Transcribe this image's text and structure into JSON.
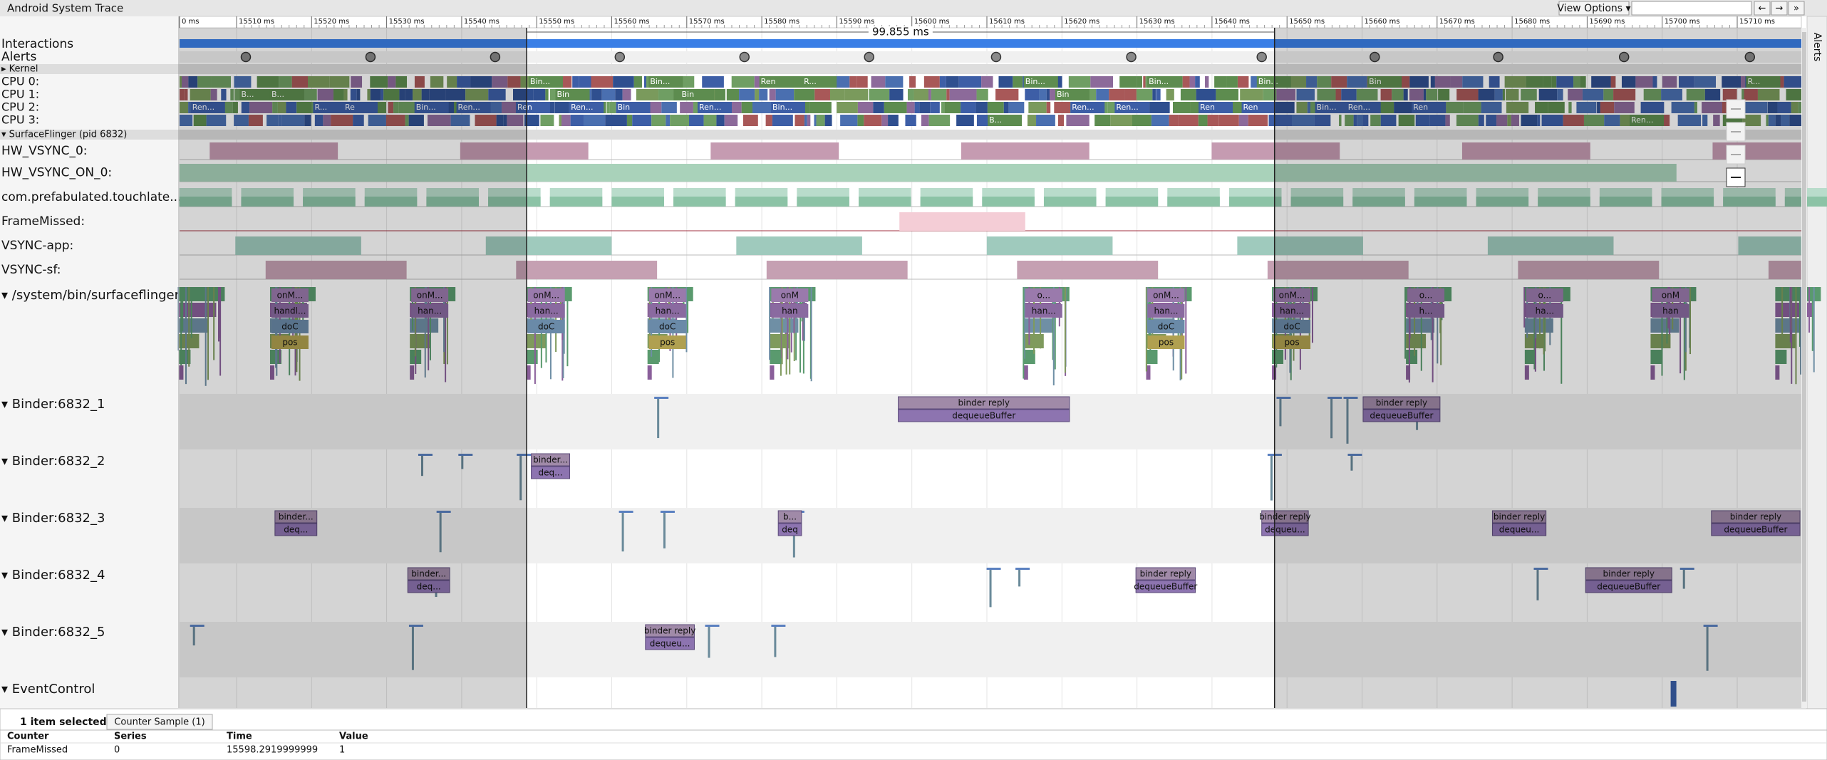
{
  "header": {
    "title": "Android System Trace",
    "view_options": "View Options ▾",
    "nav": [
      "←",
      "→",
      "»"
    ]
  },
  "ruler": {
    "ticks": [
      "0 ms",
      "15510 ms",
      "15520 ms",
      "15530 ms",
      "15540 ms",
      "15550 ms",
      "15560 ms",
      "15570 ms",
      "15580 ms",
      "15590 ms",
      "15600 ms",
      "15610 ms",
      "15620 ms",
      "15630 ms",
      "15640 ms",
      "15650 ms",
      "15660 ms",
      "15670 ms",
      "15680 ms",
      "15690 ms",
      "15700 ms",
      "15710 ms"
    ],
    "selection": "99.855 ms"
  },
  "tracks": {
    "interactions": "Interactions",
    "alerts": "Alerts",
    "kernel": "▸ Kernel",
    "cpus": [
      "CPU 0:",
      "CPU 1:",
      "CPU 2:",
      "CPU 3:"
    ],
    "process": "▾ SurfaceFlinger (pid 6832)",
    "counters": [
      "HW_VSYNC_0:",
      "HW_VSYNC_ON_0:",
      "com.prefabulated.touchlate...",
      "FrameMissed:",
      "VSYNC-app:",
      "VSYNC-sf:"
    ],
    "threads": [
      "▾  /system/bin/surfaceflinger",
      "▾  Binder:6832_1",
      "▾  Binder:6832_2",
      "▾  Binder:6832_3",
      "▾  Binder:6832_4",
      "▾  Binder:6832_5",
      "▾  EventControl"
    ]
  },
  "cpu_slices": [
    [
      "Bin...",
      "Bin...",
      "Ren",
      "R...",
      "Bin...",
      "Bin...",
      "Bin...",
      "Bin",
      "R..."
    ],
    [
      "B...",
      "B...",
      "Bin",
      "Bin",
      "Bin"
    ],
    [
      "Ren...",
      "R...",
      "Re",
      "Bin...",
      "Ren...",
      "Ren",
      "Ren...",
      "Bin",
      "Ren...",
      "Bin...",
      "Ren...",
      "Ren...",
      "Ren",
      "Ren",
      "Bin...",
      "Ren...",
      "Ren"
    ],
    [
      "B...",
      "Ren..."
    ]
  ],
  "sf_slices": [
    [
      "onM...",
      "handl...",
      "doC",
      "pos"
    ],
    [
      "onM...",
      "han..."
    ],
    [
      "onM...",
      "han...",
      "doC"
    ],
    [
      "onM...",
      "han...",
      "doC",
      "pos"
    ],
    [
      "o...",
      "han..."
    ],
    [
      "onM...",
      "han...",
      "doC",
      "pos"
    ],
    [
      "onM...",
      "han...",
      "doC",
      "pos"
    ],
    [
      "o...",
      "h..."
    ],
    [
      "o...",
      "ha..."
    ],
    [
      "onM",
      "han"
    ],
    [
      "onM",
      "han"
    ]
  ],
  "binder_slices": [
    [
      [
        "binder reply",
        "dequeueBuffer"
      ],
      [
        "binder reply",
        "dequeueBuffer"
      ]
    ],
    [
      [
        "binder...",
        "deq..."
      ]
    ],
    [
      [
        "binder...",
        "deq..."
      ],
      [
        "b...",
        "deq"
      ],
      [
        "binder reply",
        "dequeu..."
      ],
      [
        "binder reply",
        "dequeu..."
      ],
      [
        "binder reply",
        "dequeueBuffer"
      ]
    ],
    [
      [
        "binder...",
        "deq..."
      ],
      [
        "binder reply",
        "dequeueBuffer"
      ],
      [
        "binder reply",
        "dequeueBuffer"
      ]
    ],
    [
      [
        "binder reply",
        "dequeu..."
      ]
    ]
  ],
  "side_panel": "Alerts",
  "details": {
    "summary": "1 item selected:",
    "tab": "Counter Sample (1)",
    "columns": [
      "Counter",
      "Series",
      "Time",
      "Value"
    ],
    "rows": [
      [
        "FrameMissed",
        0,
        15598.2919999999,
        1
      ]
    ]
  }
}
